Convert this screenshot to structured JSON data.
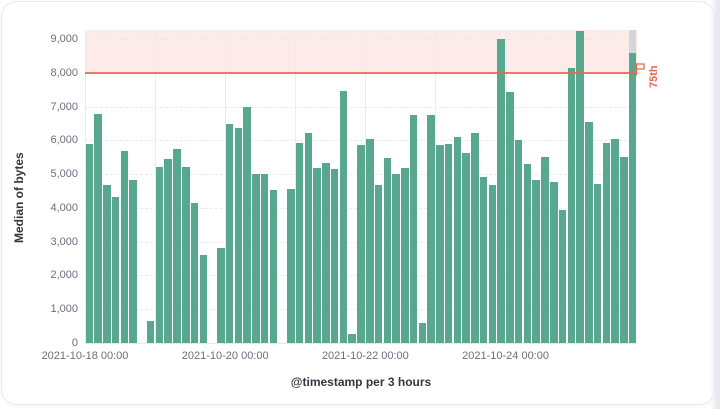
{
  "chart_data": {
    "type": "bar",
    "title": "",
    "ylabel": "Median of bytes",
    "xlabel": "@timestamp per 3 hours",
    "x_start": "2021-10-18 00:00",
    "bucket_interval_hours": 3,
    "bucket_count": 63,
    "values": [
      5900,
      6770,
      4690,
      4320,
      5670,
      4840,
      null,
      640,
      5210,
      5460,
      5740,
      5210,
      4130,
      2610,
      null,
      2810,
      6490,
      6360,
      7000,
      4990,
      4990,
      4530,
      null,
      4570,
      5920,
      6220,
      5180,
      5330,
      5160,
      7450,
      280,
      5870,
      6050,
      4670,
      5480,
      5010,
      5190,
      6760,
      590,
      6760,
      5870,
      5900,
      6100,
      5620,
      6220,
      4900,
      4680,
      9010,
      7430,
      6000,
      5300,
      4830,
      5500,
      4770,
      3930,
      8140,
      9250,
      6550,
      4700,
      5920,
      6050,
      5510,
      8570
    ],
    "ylim": [
      0,
      9265
    ],
    "y_ticks": [
      {
        "value": 0,
        "label": "0"
      },
      {
        "value": 1000,
        "label": "1,000"
      },
      {
        "value": 2000,
        "label": "2,000"
      },
      {
        "value": 3000,
        "label": "3,000"
      },
      {
        "value": 4000,
        "label": "4,000"
      },
      {
        "value": 5000,
        "label": "5,000"
      },
      {
        "value": 6000,
        "label": "6,000"
      },
      {
        "value": 7000,
        "label": "7,000"
      },
      {
        "value": 8000,
        "label": "8,000"
      },
      {
        "value": 9000,
        "label": "9,000"
      }
    ],
    "x_ticks": [
      {
        "bucket_index": 0,
        "label": "2021-10-18 00:00"
      },
      {
        "bucket_index": 16,
        "label": "2021-10-20 00:00"
      },
      {
        "bucket_index": 32,
        "label": "2021-10-22 00:00"
      },
      {
        "bucket_index": 48,
        "label": "2021-10-24 00:00"
      }
    ],
    "day_gridline_buckets": [
      0,
      8,
      16,
      24,
      32,
      40,
      48,
      56
    ],
    "grid": true,
    "legend_position": "none",
    "threshold": {
      "label": "75th",
      "value": 8000,
      "shaded_above": true
    },
    "partial_bucket": {
      "index": 62,
      "value": 8570
    }
  },
  "colors": {
    "bar": "#58A88F",
    "threshold_line": "#E7664C",
    "threshold_region": "rgba(231,102,76,0.13)",
    "threshold_text": "#E7664C",
    "partial_cap": "#D5D6DA",
    "tick_label": "#69707D",
    "axis_title": "#343741"
  }
}
